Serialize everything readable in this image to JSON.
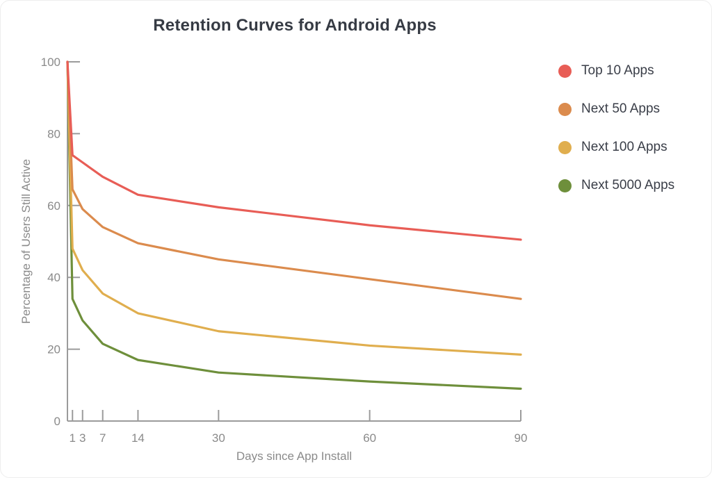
{
  "title": "Retention Curves for Android Apps",
  "colors": {
    "title_text": "#363b44",
    "legend_text": "#3a3e48",
    "axis_line": "#9b9b9b",
    "tick_text": "#8a8a8a",
    "series_red": "#e85d56",
    "series_orange": "#db8b4d",
    "series_yellow": "#e0ae4e",
    "series_green": "#6e8f3b"
  },
  "chart_data": {
    "type": "line",
    "title": "Retention Curves for Android Apps",
    "xlabel": "Days since App Install",
    "ylabel": "Percentage of Users Still Active",
    "x": [
      0,
      1,
      3,
      7,
      14,
      30,
      60,
      90
    ],
    "x_ticks": [
      1,
      3,
      7,
      14,
      30,
      60,
      90
    ],
    "y_ticks": [
      0,
      20,
      40,
      60,
      80,
      100
    ],
    "xlim": [
      0,
      90
    ],
    "ylim": [
      0,
      100
    ],
    "grid": false,
    "legend_position": "right",
    "series": [
      {
        "name": "Top 10 Apps",
        "color": "#e85d56",
        "values": [
          100,
          74,
          72,
          68,
          63,
          59.5,
          54.5,
          50.5
        ]
      },
      {
        "name": "Next 50 Apps",
        "color": "#db8b4d",
        "values": [
          100,
          64.5,
          59,
          54,
          49.5,
          45,
          39.5,
          34
        ]
      },
      {
        "name": "Next 100 Apps",
        "color": "#e0ae4e",
        "values": [
          100,
          48,
          42,
          35.5,
          30,
          25,
          21,
          18.5
        ]
      },
      {
        "name": "Next 5000 Apps",
        "color": "#6e8f3b",
        "values": [
          100,
          34,
          28,
          21.5,
          17,
          13.5,
          11,
          9
        ]
      }
    ]
  }
}
